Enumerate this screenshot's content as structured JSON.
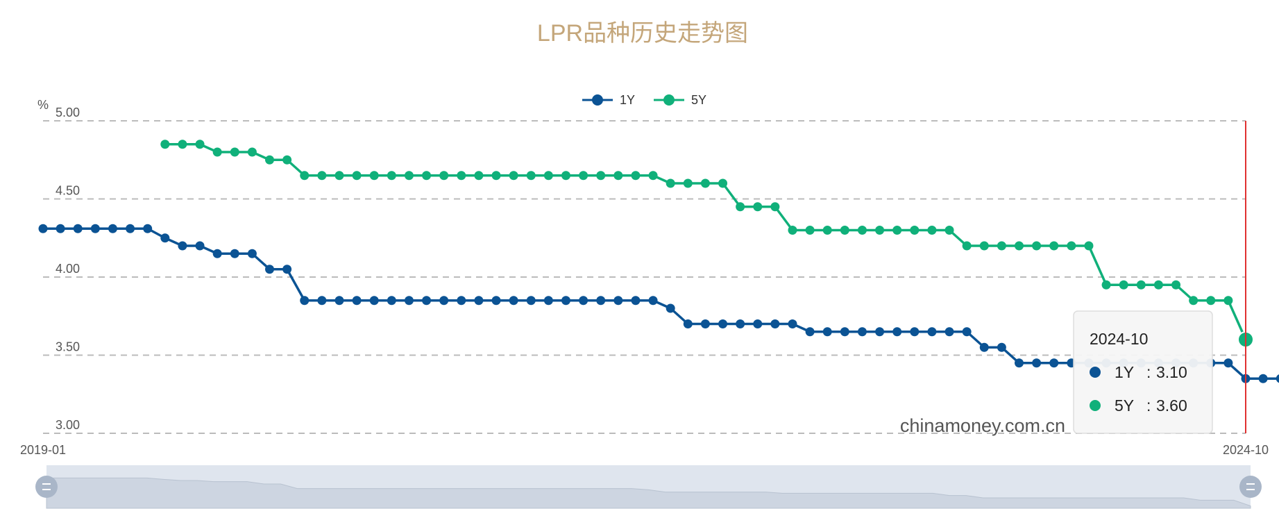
{
  "chart_data": {
    "type": "line",
    "title": "LPR品种历史走势图",
    "ylabel": "%",
    "ylim": [
      3.0,
      5.0
    ],
    "yticks": [
      "5.00",
      "4.50",
      "4.00",
      "3.50",
      "3.00"
    ],
    "x_start_label": "2019-01",
    "x_end_label": "2024-10",
    "grid": true,
    "legend_position": "top-center",
    "series": [
      {
        "name": "1Y",
        "color": "#0b5394",
        "start": "2019-01",
        "values": [
          4.31,
          4.31,
          4.31,
          4.31,
          4.31,
          4.31,
          4.31,
          4.25,
          4.2,
          4.2,
          4.15,
          4.15,
          4.15,
          4.05,
          4.05,
          3.85,
          3.85,
          3.85,
          3.85,
          3.85,
          3.85,
          3.85,
          3.85,
          3.85,
          3.85,
          3.85,
          3.85,
          3.85,
          3.85,
          3.85,
          3.85,
          3.85,
          3.85,
          3.85,
          3.85,
          3.85,
          3.8,
          3.7,
          3.7,
          3.7,
          3.7,
          3.7,
          3.7,
          3.7,
          3.65,
          3.65,
          3.65,
          3.65,
          3.65,
          3.65,
          3.65,
          3.65,
          3.65,
          3.65,
          3.55,
          3.55,
          3.45,
          3.45,
          3.45,
          3.45,
          3.45,
          3.45,
          3.45,
          3.45,
          3.45,
          3.45,
          3.45,
          3.45,
          3.45,
          3.35,
          3.35,
          3.35,
          3.1
        ]
      },
      {
        "name": "5Y",
        "color": "#10b07a",
        "start": "2019-08",
        "values": [
          4.85,
          4.85,
          4.85,
          4.8,
          4.8,
          4.8,
          4.75,
          4.75,
          4.65,
          4.65,
          4.65,
          4.65,
          4.65,
          4.65,
          4.65,
          4.65,
          4.65,
          4.65,
          4.65,
          4.65,
          4.65,
          4.65,
          4.65,
          4.65,
          4.65,
          4.65,
          4.65,
          4.65,
          4.65,
          4.6,
          4.6,
          4.6,
          4.6,
          4.45,
          4.45,
          4.45,
          4.3,
          4.3,
          4.3,
          4.3,
          4.3,
          4.3,
          4.3,
          4.3,
          4.3,
          4.3,
          4.2,
          4.2,
          4.2,
          4.2,
          4.2,
          4.2,
          4.2,
          4.2,
          3.95,
          3.95,
          3.95,
          3.95,
          3.95,
          3.85,
          3.85,
          3.85,
          3.6
        ]
      }
    ]
  },
  "tooltip": {
    "date": "2024-10",
    "rows": [
      {
        "name": "1Y",
        "value": "3.10",
        "color": "#0b5394"
      },
      {
        "name": "5Y",
        "value": "3.60",
        "color": "#10b07a"
      }
    ]
  },
  "watermark": "chinamoney.com.cn"
}
